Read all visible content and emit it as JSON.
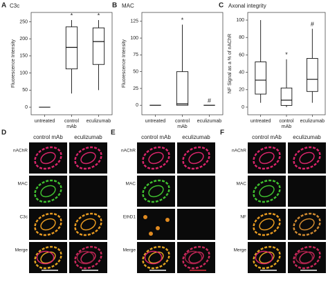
{
  "chart_data": [
    {
      "type": "box",
      "panel": "A",
      "title": "C3c",
      "y_label": "Fluorescence Intensity",
      "categories": [
        "untreated",
        "control mAb",
        "eculizumab"
      ],
      "boxes": {
        "min": [
          0,
          40,
          50
        ],
        "q1": [
          0,
          112,
          125
        ],
        "median": [
          0,
          175,
          192
        ],
        "q3": [
          0,
          235,
          232
        ],
        "max": [
          0,
          255,
          255
        ]
      },
      "markers": [
        null,
        "*",
        "*"
      ],
      "ylim": [
        -10,
        265
      ],
      "yticks": [
        0,
        50,
        100,
        150,
        200,
        250
      ]
    },
    {
      "type": "box",
      "panel": "B",
      "title": "MAC",
      "y_label": "Fluorescence Intensity",
      "categories": [
        "untreated",
        "control mAb",
        "eculizumab"
      ],
      "boxes": {
        "min": [
          0,
          0,
          0
        ],
        "q1": [
          0,
          0,
          0
        ],
        "median": [
          0,
          2,
          0
        ],
        "q3": [
          0,
          50,
          0
        ],
        "max": [
          0,
          120,
          0
        ]
      },
      "markers": [
        null,
        "*",
        "#"
      ],
      "ylim": [
        -8,
        132
      ],
      "yticks": [
        0,
        25,
        50,
        75,
        100,
        125
      ]
    },
    {
      "type": "box",
      "panel": "C",
      "title": "Axonal integrity",
      "y_label": "NF Signal as a % of nAChR",
      "categories": [
        "untreated",
        "control mAb",
        "eculizumab"
      ],
      "boxes": {
        "min": [
          5,
          0,
          5
        ],
        "q1": [
          15,
          2,
          18
        ],
        "median": [
          31,
          8,
          32
        ],
        "q3": [
          52,
          22,
          56
        ],
        "max": [
          100,
          55,
          90
        ]
      },
      "markers": [
        null,
        "*",
        "#"
      ],
      "ylim": [
        -4,
        104
      ],
      "yticks": [
        0,
        20,
        40,
        60,
        80,
        100
      ]
    }
  ],
  "image_panels": [
    {
      "panel": "D",
      "columns": [
        "control mAb",
        "eculizumab"
      ],
      "rows": [
        "nAChR",
        "MAC",
        "C3c",
        "Merge"
      ]
    },
    {
      "panel": "E",
      "columns": [
        "control mAb",
        "eculizumab"
      ],
      "rows": [
        "nAChR",
        "MAC",
        "EthD1",
        "Merge"
      ]
    },
    {
      "panel": "F",
      "columns": [
        "control mAb",
        "eculizumab"
      ],
      "rows": [
        "nAChR",
        "MAC",
        "NF",
        "Merge"
      ]
    }
  ]
}
